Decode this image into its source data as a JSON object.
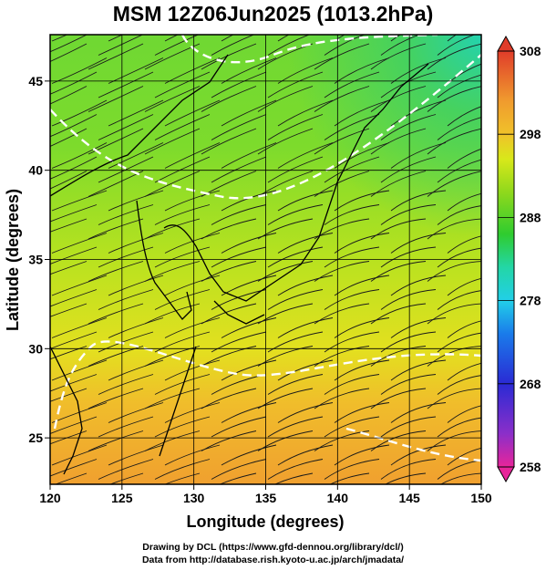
{
  "title": "MSM 12Z06Jun2025 (1013.2hPa)",
  "xlabel": "Longitude (degrees)",
  "ylabel": "Latitude  (degrees)",
  "credits": [
    "Drawing by DCL (https://www.gfd-dennou.org/library/dcl/)",
    "Data from http://database.rish.kyoto-u.ac.jp/arch/jmadata/"
  ],
  "map": {
    "lon_range": [
      120,
      150
    ],
    "lat_range": [
      22.4,
      47.6
    ],
    "x_ticks": [
      120,
      125,
      130,
      135,
      140,
      145,
      150
    ],
    "y_ticks": [
      25,
      30,
      35,
      40,
      45
    ],
    "grid": true,
    "field": "temperature (K) with streamlines",
    "contours_white_dashed": true
  },
  "colorbar": {
    "ticks": [
      "308",
      "298",
      "288",
      "278",
      "268",
      "258"
    ],
    "range": [
      258,
      308
    ],
    "colors": [
      "#e8259a",
      "#8b2fc9",
      "#2a2ad4",
      "#1a7bea",
      "#22cfe8",
      "#23d6a6",
      "#2fcc2f",
      "#8fd81c",
      "#d8e81a",
      "#f0c22a",
      "#f09b2e",
      "#e85a2c",
      "#e03c2a"
    ]
  }
}
